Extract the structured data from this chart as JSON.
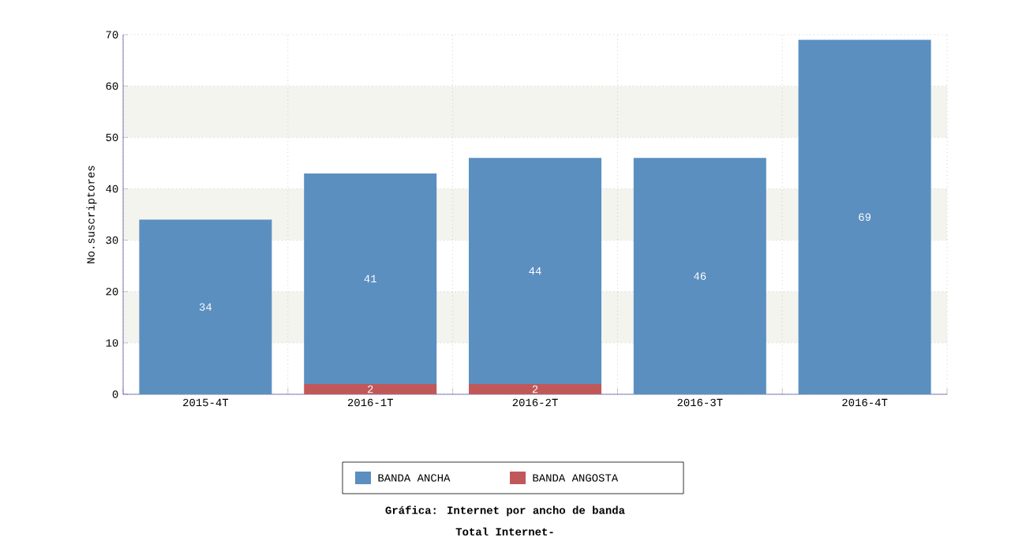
{
  "chart_data": {
    "type": "bar",
    "stacked": true,
    "title": "Gráfica: Internet por ancho de banda",
    "subtitle": "Total Internet-",
    "ylabel": "No.suscriptores",
    "categories": [
      "2015-4T",
      "2016-1T",
      "2016-2T",
      "2016-3T",
      "2016-4T"
    ],
    "series": [
      {
        "name": "BANDA ANGOSTA",
        "color": "#c0585a",
        "values": [
          0,
          2,
          2,
          0,
          0
        ],
        "value_labels": [
          null,
          "2",
          "2",
          null,
          null
        ]
      },
      {
        "name": "BANDA ANCHA",
        "color": "#5b8fc0",
        "values": [
          34,
          41,
          44,
          46,
          69
        ],
        "value_labels": [
          "34",
          "41",
          "44",
          "46",
          "69"
        ]
      }
    ],
    "ylim": [
      0,
      70
    ],
    "yticks": [
      0,
      10,
      20,
      30,
      40,
      50,
      60,
      70
    ],
    "bands": [
      {
        "axis": "y",
        "from": 10,
        "to": 20,
        "color": "#f4f4ef"
      },
      {
        "axis": "y",
        "from": 30,
        "to": 40,
        "color": "#f4f4ef"
      },
      {
        "axis": "y",
        "from": 50,
        "to": 60,
        "color": "#f4f4ef"
      }
    ],
    "grid": true,
    "legend": "bottom"
  }
}
